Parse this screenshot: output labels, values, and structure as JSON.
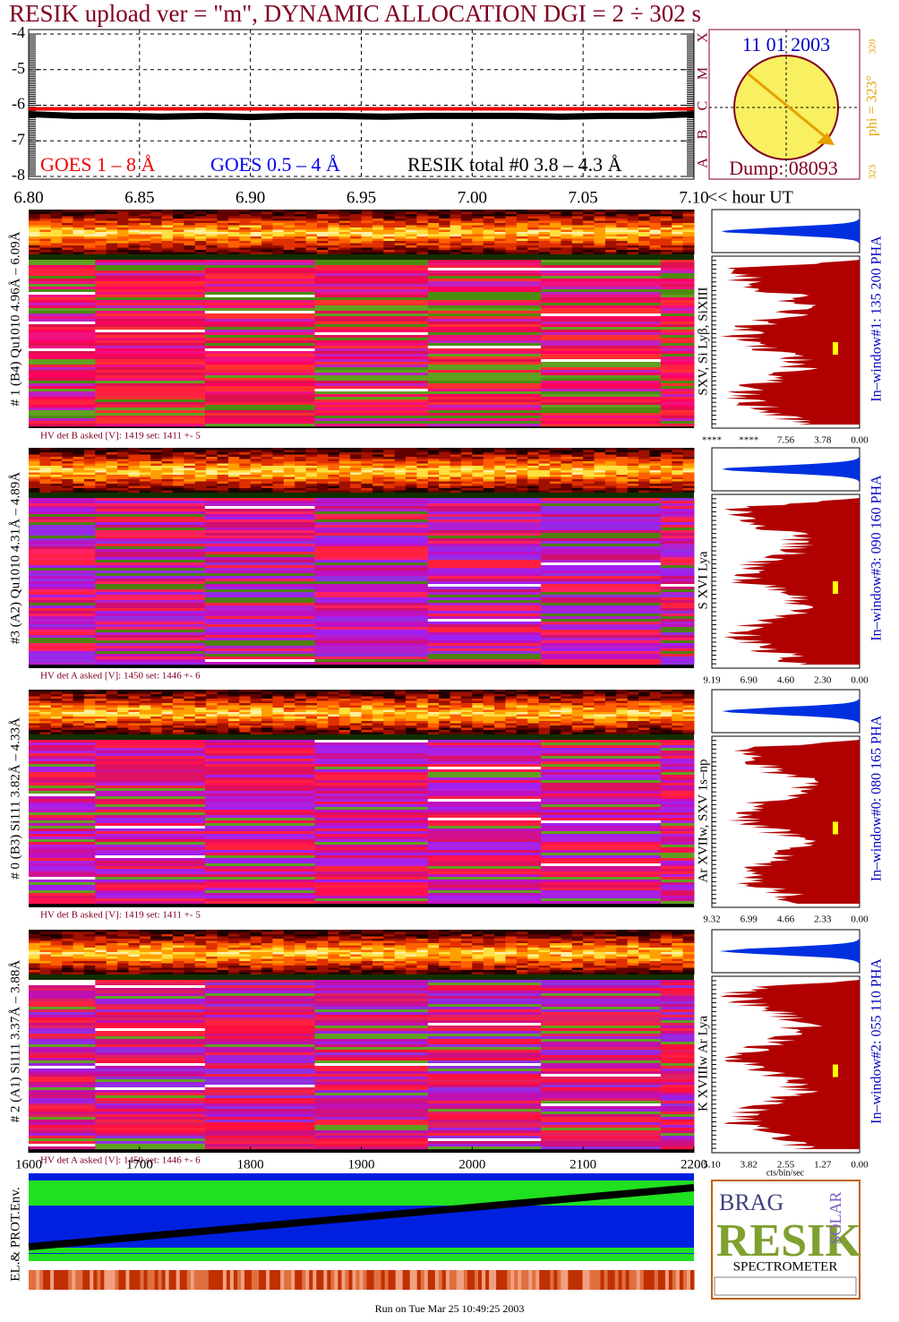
{
  "title": "RESIK upload ver = \"m\", DYNAMIC ALLOCATION  DGI =   2 ÷ 302 s",
  "chart_data": {
    "type": "line",
    "x": [
      6.8,
      6.82,
      6.84,
      6.86,
      6.88,
      6.9,
      6.92,
      6.94,
      6.96,
      6.98,
      7.0,
      7.02,
      7.04,
      7.06,
      7.08,
      7.1
    ],
    "xlim": [
      6.8,
      7.1
    ],
    "xticks": [
      {
        "value": 6.8,
        "label": "6.80"
      },
      {
        "value": 6.85,
        "label": "6.85"
      },
      {
        "value": 6.9,
        "label": "6.90"
      },
      {
        "value": 6.95,
        "label": "6.95"
      },
      {
        "value": 7.0,
        "label": "7.00"
      },
      {
        "value": 7.05,
        "label": "7.05"
      },
      {
        "value": 7.1,
        "label": "7.10"
      }
    ],
    "x_label": "<< hour UT",
    "ylim": [
      -8,
      -4
    ],
    "yticks": [
      -8,
      -7,
      -6,
      -5,
      -4
    ],
    "grid": true,
    "series": [
      {
        "name": "GOES 1 – 8 Å",
        "color": "#ee0000",
        "values": [
          -6.1,
          -6.1,
          -6.1,
          -6.1,
          -6.1,
          -6.1,
          -6.1,
          -6.1,
          -6.1,
          -6.1,
          -6.1,
          -6.1,
          -6.1,
          -6.1,
          -6.1,
          -6.1
        ]
      },
      {
        "name": "GOES 0.5 – 4 Å",
        "color": "#0000ee",
        "values": [
          null,
          null,
          null,
          null,
          null,
          null,
          null,
          null,
          null,
          null,
          null,
          null,
          null,
          null,
          null,
          null
        ]
      },
      {
        "name": "RESIK total #0  3.8 – 4.3 Å",
        "color": "#000000",
        "values": [
          -6.25,
          -6.3,
          -6.3,
          -6.32,
          -6.3,
          -6.33,
          -6.3,
          -6.3,
          -6.32,
          -6.3,
          -6.3,
          -6.3,
          -6.32,
          -6.3,
          -6.3,
          -6.25
        ]
      }
    ]
  },
  "sun_panel": {
    "date": "11 01 2003",
    "dump": "Dump: 08093",
    "classes": [
      "A",
      "B",
      "C",
      "M",
      "X"
    ],
    "phi": "phi = 323°",
    "phi_top": "320",
    "phi_bottom": "323"
  },
  "detectors": [
    {
      "label": "# 1 (B4) Qu1010 4.96Å – 6.09Å",
      "hv": "HV det B asked [V]:  1419 set:  1411  +-   5",
      "lines": "SXV, Si Lyβ, SiXIII",
      "window": "In–window#1:  135 200 PHA",
      "pha_ticks": [
        "****",
        "****",
        "7.56",
        "3.78",
        "0.00"
      ]
    },
    {
      "label": "#3 (A2) Qu1010  4.31Å – 4.89Å",
      "hv": "HV det A asked [V]:  1450 set:  1446  +-   6",
      "lines": "S XVI Lya",
      "window": "In–window#3:  090 160 PHA",
      "pha_ticks": [
        "9.19",
        "6.90",
        "4.60",
        "2.30",
        "0.00"
      ]
    },
    {
      "label": "# 0 (B3) Si111  3.82Å – 4.33Å",
      "hv": "HV det B asked [V]:  1419 set:  1411  +-   5",
      "lines": "Ar XVIIw,  SXV 1s–np",
      "window": "In–window#0:  080 165 PHA",
      "pha_ticks": [
        "9.32",
        "6.99",
        "4.66",
        "2.33",
        "0.00"
      ]
    },
    {
      "label": "# 2 (A1) Si111  3.37Å – 3.88Å",
      "hv": "HV det A asked [V]:  1450 set:  1446  +-   6",
      "lines": "K XVIIIw  Ar Lya",
      "window": "In–window#2:  055 110 PHA",
      "pha_ticks": [
        "5.10",
        "3.82",
        "2.55",
        "1.27",
        "0.00"
      ]
    }
  ],
  "pha_units": "cts/bin/sec",
  "detector_axis": {
    "xlim": [
      1600,
      2200
    ],
    "xticks": [
      1600,
      1700,
      1800,
      1900,
      2000,
      2100,
      2200
    ]
  },
  "env_label": "EL.& PROT.Env.",
  "logo": {
    "brag": "BRAG",
    "resik": "RESIK",
    "solar": "SOLAR",
    "spectrometer": "SPECTROMETER"
  },
  "footer": "Run on Tue Mar 25 10:49:25 2003"
}
